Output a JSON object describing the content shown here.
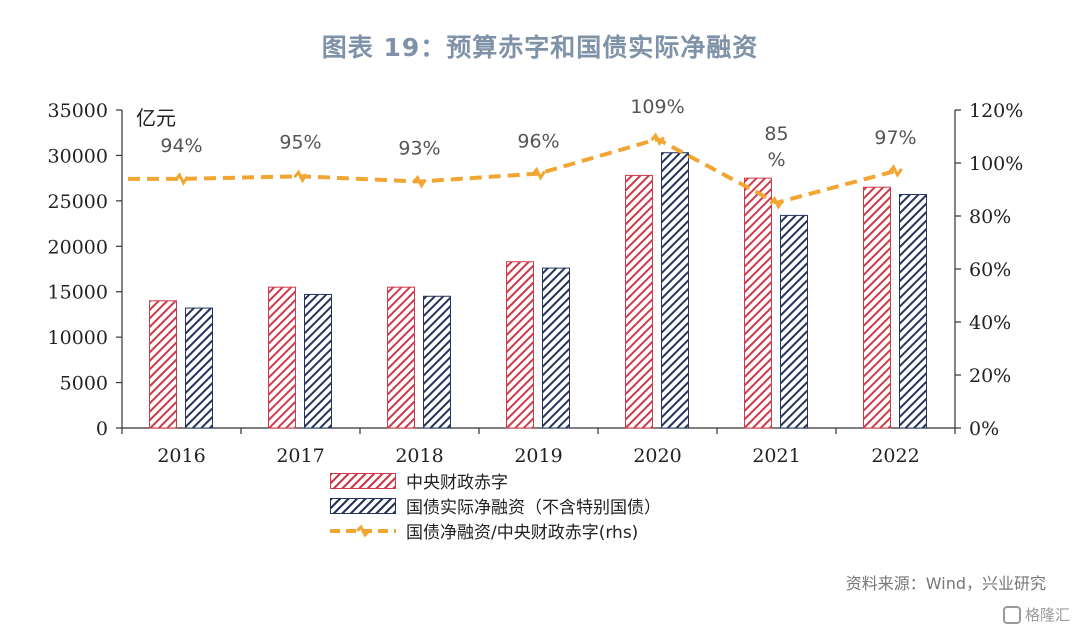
{
  "title": "图表 19：预算赤字和国债实际净融资",
  "unit_label": "亿元",
  "source": "资料来源：Wind，兴业研究",
  "watermark": "格隆汇",
  "colors": {
    "deficit": "#cf3a4a",
    "financing": "#26345e",
    "ratio": "#f2a531",
    "title": "#7f92a8"
  },
  "chart_data": {
    "type": "bar",
    "categories": [
      "2016",
      "2017",
      "2018",
      "2019",
      "2020",
      "2021",
      "2022"
    ],
    "series": [
      {
        "name": "中央财政赤字",
        "type": "bar",
        "axis": "left",
        "values": [
          14000,
          15500,
          15500,
          18300,
          27800,
          27500,
          26500
        ]
      },
      {
        "name": "国债实际净融资（不含特别国债）",
        "type": "bar",
        "axis": "left",
        "values": [
          13200,
          14700,
          14500,
          17600,
          30300,
          23400,
          25700
        ]
      },
      {
        "name": "国债净融资/中央财政赤字(rhs)",
        "type": "line",
        "axis": "right",
        "values": [
          94,
          95,
          93,
          96,
          109,
          85,
          97
        ],
        "labels": [
          "94%",
          "95%",
          "93%",
          "96%",
          "109%",
          "85\n%",
          "97%"
        ]
      }
    ],
    "ylim": [
      0,
      35000
    ],
    "yticks": [
      "35000",
      "30000",
      "25000",
      "20000",
      "15000",
      "10000",
      "5000",
      "0"
    ],
    "y2lim": [
      0,
      120
    ],
    "y2ticks": [
      "120%",
      "100%",
      "80%",
      "60%",
      "40%",
      "20%",
      "0%"
    ],
    "ylabel": "亿元",
    "grid": false,
    "legend": "bottom-center"
  }
}
